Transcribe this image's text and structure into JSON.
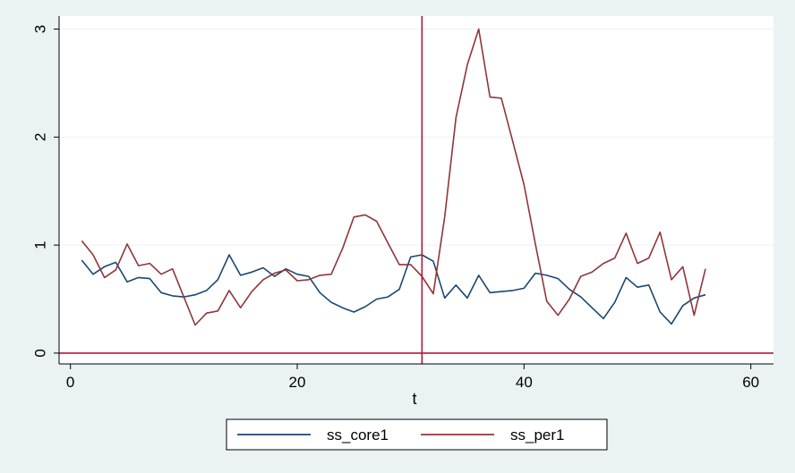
{
  "chart_data": {
    "type": "line",
    "title": "",
    "xlabel": "t",
    "ylabel": "",
    "xlim": [
      -1,
      62
    ],
    "ylim": [
      -0.1,
      3.12
    ],
    "xticks": [
      0,
      20,
      40,
      60
    ],
    "yticks": [
      0,
      1,
      2,
      3
    ],
    "grid": "horizontal",
    "legend_position": "bottom",
    "reference_lines": {
      "vertical_x": 31,
      "horizontal_y": 0,
      "color": "#b0193a"
    },
    "x": [
      1,
      2,
      3,
      4,
      5,
      6,
      7,
      8,
      9,
      10,
      11,
      12,
      13,
      14,
      15,
      16,
      17,
      18,
      19,
      20,
      21,
      22,
      23,
      24,
      25,
      26,
      27,
      28,
      29,
      30,
      31,
      32,
      33,
      34,
      35,
      36,
      37,
      38,
      39,
      40,
      41,
      42,
      43,
      44,
      45,
      46,
      47,
      48,
      49,
      50,
      51,
      52,
      53,
      54,
      55,
      56
    ],
    "series": [
      {
        "name": "ss_core1",
        "color": "#1a476f",
        "values": [
          0.86,
          0.73,
          0.8,
          0.84,
          0.66,
          0.7,
          0.69,
          0.56,
          0.53,
          0.52,
          0.54,
          0.58,
          0.68,
          0.91,
          0.72,
          0.75,
          0.79,
          0.71,
          0.78,
          0.73,
          0.71,
          0.56,
          0.47,
          0.42,
          0.38,
          0.43,
          0.5,
          0.52,
          0.59,
          0.89,
          0.91,
          0.85,
          0.51,
          0.63,
          0.51,
          0.72,
          0.56,
          0.57,
          0.58,
          0.6,
          0.74,
          0.72,
          0.69,
          0.59,
          0.52,
          0.42,
          0.32,
          0.47,
          0.7,
          0.61,
          0.63,
          0.38,
          0.27,
          0.44,
          0.51,
          0.54
        ]
      },
      {
        "name": "ss_per1",
        "color": "#90353b",
        "values": [
          1.04,
          0.91,
          0.7,
          0.77,
          1.01,
          0.81,
          0.83,
          0.73,
          0.78,
          0.52,
          0.26,
          0.37,
          0.39,
          0.58,
          0.42,
          0.57,
          0.68,
          0.74,
          0.77,
          0.67,
          0.68,
          0.72,
          0.73,
          0.97,
          1.26,
          1.28,
          1.22,
          1.02,
          0.82,
          0.82,
          0.71,
          0.55,
          1.26,
          2.18,
          2.67,
          3.0,
          2.37,
          2.36,
          1.96,
          1.56,
          1.01,
          0.48,
          0.35,
          0.5,
          0.71,
          0.75,
          0.83,
          0.88,
          1.11,
          0.83,
          0.88,
          1.12,
          0.68,
          0.8,
          0.35,
          0.78
        ]
      }
    ]
  }
}
